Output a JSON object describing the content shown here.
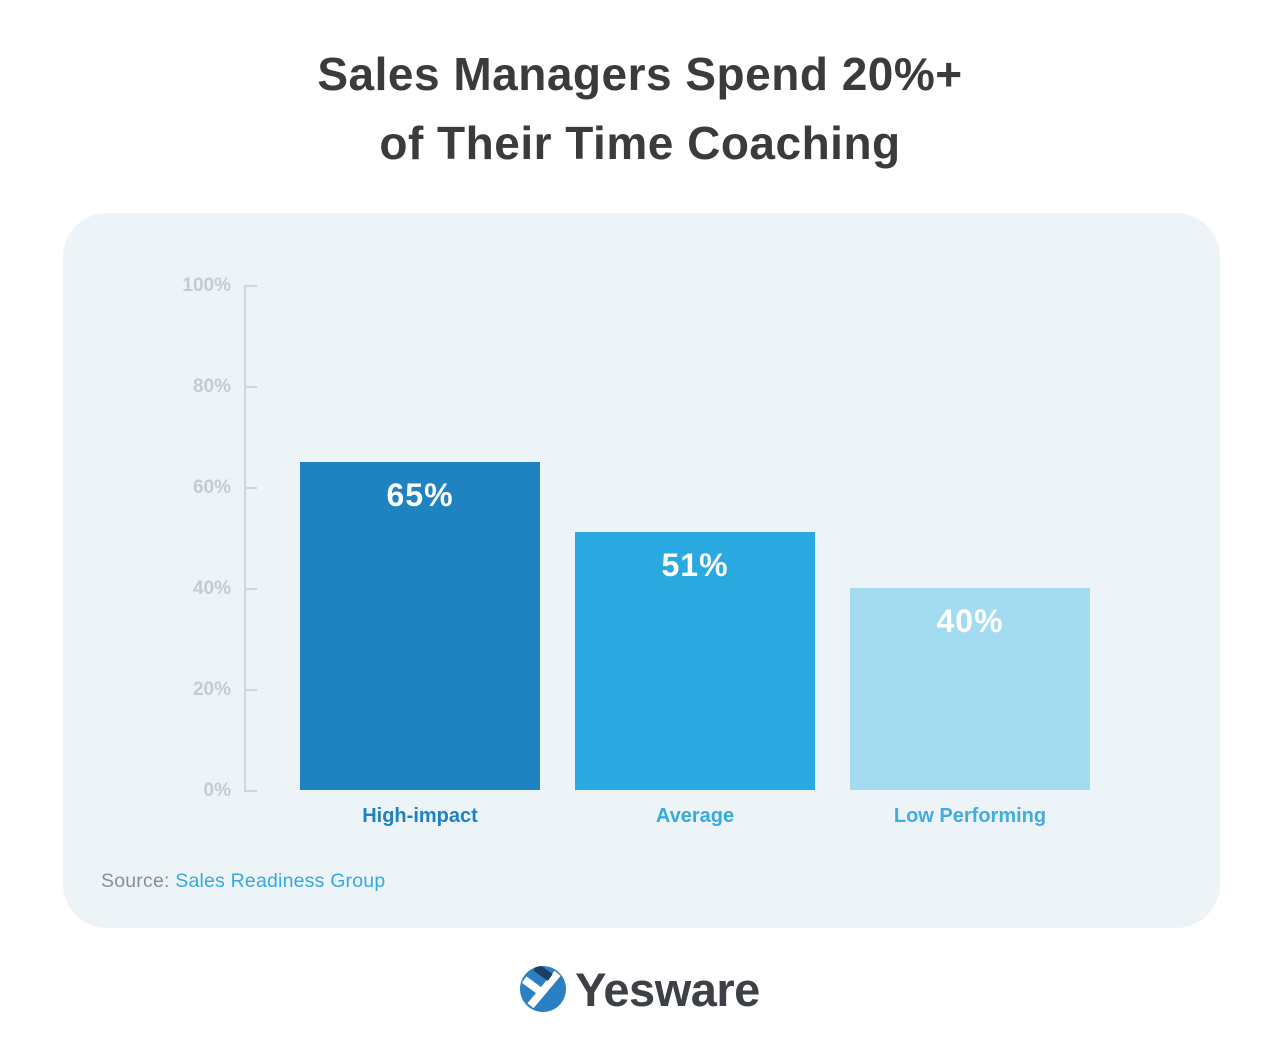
{
  "title": {
    "line1": "Sales Managers Spend 20%+",
    "line2": "of Their Time Coaching"
  },
  "chart_data": {
    "type": "bar",
    "title": "Sales Managers Spend 20%+ of Their Time Coaching",
    "categories": [
      "High-impact",
      "Average",
      "Low Performing"
    ],
    "values": [
      65,
      51,
      40
    ],
    "value_labels": [
      "65%",
      "51%",
      "40%"
    ],
    "bar_colors": [
      "#1f83c1",
      "#2aa9e0",
      "#a3dcf0"
    ],
    "category_label_colors": [
      "#1c82c4",
      "#35aae1",
      "#3fade2"
    ],
    "xlabel": "",
    "ylabel": "",
    "ylim": [
      0,
      100
    ],
    "yticks": [
      0,
      20,
      40,
      60,
      80,
      100
    ],
    "ytick_labels": [
      "0%",
      "20%",
      "40%",
      "60%",
      "80%",
      "100%"
    ],
    "grid": false,
    "legend": "none"
  },
  "source": {
    "prefix": "Source: ",
    "link": "Sales Readiness Group"
  },
  "logo": {
    "brand": "Yesware",
    "mark_color": "#2a80c2",
    "mark_accent_color": "#1d3e63"
  }
}
